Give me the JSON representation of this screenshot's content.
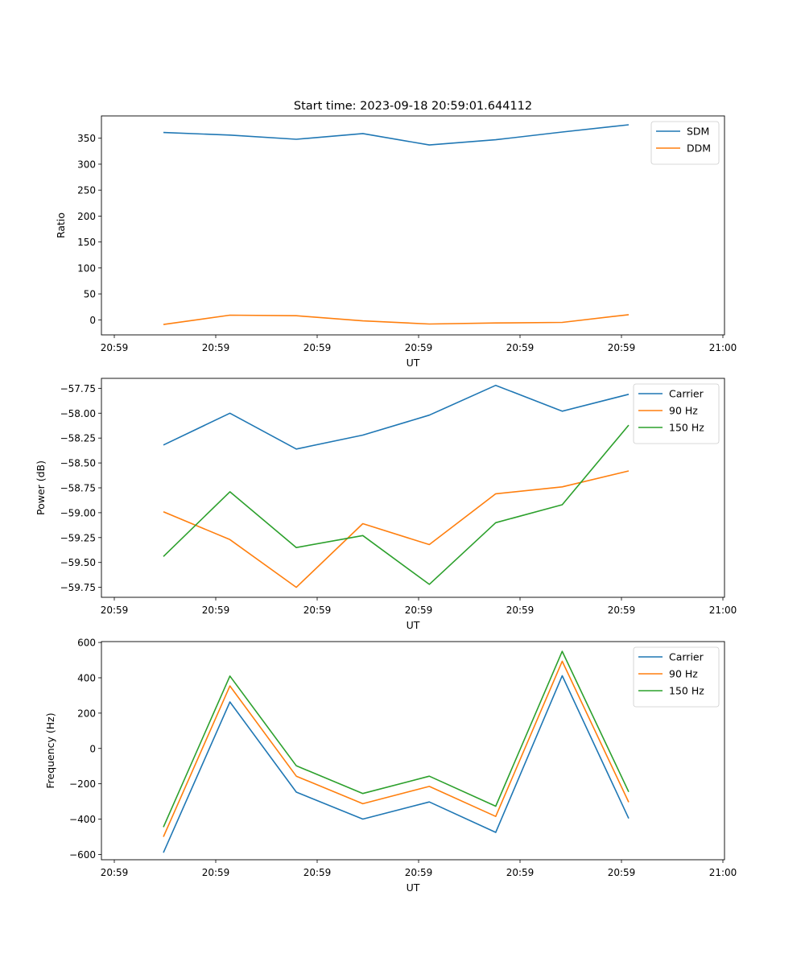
{
  "title": "Start time: 2023-09-18 20:59:01.644112",
  "colors": {
    "blue": "#1f77b4",
    "orange": "#ff7f0e",
    "green": "#2ca02c"
  },
  "chart_data": [
    {
      "type": "line",
      "title": "Start time: 2023-09-18 20:59:01.644112",
      "xlabel": "UT",
      "ylabel": "Ratio",
      "x_tick_labels": [
        "20:59",
        "20:59",
        "20:59",
        "20:59",
        "20:59",
        "20:59",
        "21:00"
      ],
      "y_ticks": [
        0,
        50,
        100,
        150,
        200,
        250,
        300,
        350
      ],
      "ylim": [
        -29,
        393
      ],
      "legend": "top-right",
      "series": [
        {
          "name": "SDM",
          "color": "#1f77b4",
          "values": [
            361,
            356,
            348,
            359,
            337,
            347,
            362,
            376
          ]
        },
        {
          "name": "DDM",
          "color": "#ff7f0e",
          "values": [
            -9,
            9,
            8,
            -2,
            -8,
            -6,
            -5,
            10
          ]
        }
      ]
    },
    {
      "type": "line",
      "xlabel": "UT",
      "ylabel": "Power (dB)",
      "x_tick_labels": [
        "20:59",
        "20:59",
        "20:59",
        "20:59",
        "20:59",
        "20:59",
        "21:00"
      ],
      "y_ticks": [
        -59.75,
        -59.5,
        -59.25,
        -59.0,
        -58.75,
        -58.5,
        -58.25,
        -58.0,
        -57.75
      ],
      "y_tick_labels": [
        "−59.75",
        "−59.50",
        "−59.25",
        "−59.00",
        "−58.75",
        "−58.50",
        "−58.25",
        "−58.00",
        "−57.75"
      ],
      "ylim": [
        -59.85,
        -57.65
      ],
      "legend": "top-right",
      "series": [
        {
          "name": "Carrier",
          "color": "#1f77b4",
          "values": [
            -58.32,
            -58.0,
            -58.36,
            -58.22,
            -58.02,
            -57.72,
            -57.98,
            -57.81
          ]
        },
        {
          "name": "90 Hz",
          "color": "#ff7f0e",
          "values": [
            -58.99,
            -59.27,
            -59.75,
            -59.11,
            -59.32,
            -58.81,
            -58.74,
            -58.58
          ]
        },
        {
          "name": "150 Hz",
          "color": "#2ca02c",
          "values": [
            -59.44,
            -58.79,
            -59.35,
            -59.23,
            -59.72,
            -59.1,
            -58.92,
            -58.12
          ]
        }
      ]
    },
    {
      "type": "line",
      "xlabel": "UT",
      "ylabel": "Frequency (Hz)",
      "x_tick_labels": [
        "20:59",
        "20:59",
        "20:59",
        "20:59",
        "20:59",
        "20:59",
        "21:00"
      ],
      "y_ticks": [
        -600,
        -400,
        -200,
        0,
        200,
        400,
        600
      ],
      "y_tick_labels": [
        "−600",
        "−400",
        "−200",
        "0",
        "200",
        "400",
        "600"
      ],
      "ylim": [
        -630,
        605
      ],
      "legend": "top-right",
      "series": [
        {
          "name": "Carrier",
          "color": "#1f77b4",
          "values": [
            -590,
            263,
            -247,
            -400,
            -303,
            -475,
            412,
            -396
          ]
        },
        {
          "name": "90 Hz",
          "color": "#ff7f0e",
          "values": [
            -500,
            354,
            -157,
            -313,
            -215,
            -385,
            494,
            -304
          ]
        },
        {
          "name": "150 Hz",
          "color": "#2ca02c",
          "values": [
            -445,
            410,
            -98,
            -255,
            -157,
            -327,
            550,
            -246
          ]
        }
      ]
    }
  ]
}
